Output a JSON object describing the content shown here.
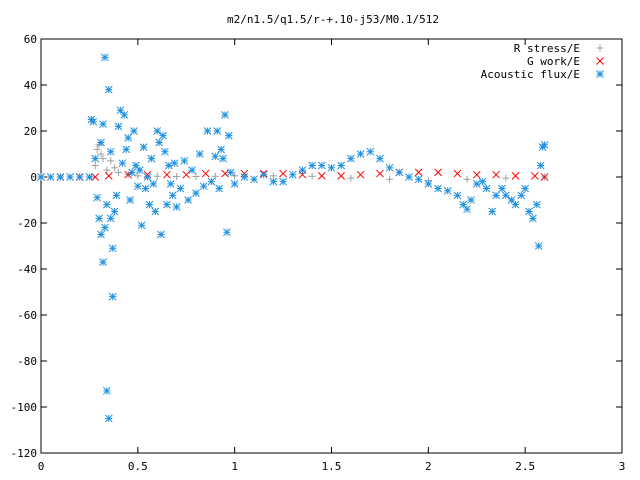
{
  "chart_data": {
    "type": "scatter",
    "title": "m2/n1.5/q1.5/r-+.10-j53/M0.1/512",
    "xlim": [
      0,
      3
    ],
    "ylim": [
      -120,
      60
    ],
    "xticks": [
      "0",
      "0.5",
      "1",
      "1.5",
      "2",
      "2.5",
      "3"
    ],
    "yticks": [
      "-120",
      "-100",
      "-80",
      "-60",
      "-40",
      "-20",
      "0",
      "20",
      "40",
      "60"
    ],
    "legend_position": "top-right",
    "series": [
      {
        "name": "R stress/E",
        "marker": "plus",
        "color": "#a0a0a0",
        "points": [
          [
            0.0,
            0
          ],
          [
            0.1,
            0
          ],
          [
            0.2,
            0
          ],
          [
            0.26,
            0
          ],
          [
            0.28,
            5
          ],
          [
            0.29,
            12
          ],
          [
            0.3,
            14
          ],
          [
            0.31,
            10
          ],
          [
            0.32,
            8
          ],
          [
            0.34,
            3
          ],
          [
            0.36,
            7
          ],
          [
            0.38,
            4
          ],
          [
            0.4,
            2
          ],
          [
            0.45,
            1
          ],
          [
            0.5,
            0.5
          ],
          [
            0.6,
            0.3
          ],
          [
            0.7,
            0.2
          ],
          [
            0.8,
            0.2
          ],
          [
            0.9,
            0.3
          ],
          [
            1.0,
            0.5
          ],
          [
            1.2,
            0.5
          ],
          [
            1.4,
            0.3
          ],
          [
            1.6,
            -0.5
          ],
          [
            1.8,
            -1
          ],
          [
            2.0,
            -1.5
          ],
          [
            2.2,
            -1
          ],
          [
            2.4,
            -0.5
          ],
          [
            2.6,
            0
          ]
        ]
      },
      {
        "name": "G work/E",
        "marker": "cross",
        "color": "#ff0000",
        "points": [
          [
            0.0,
            0
          ],
          [
            0.1,
            0
          ],
          [
            0.2,
            0
          ],
          [
            0.28,
            0
          ],
          [
            0.35,
            0.5
          ],
          [
            0.45,
            1
          ],
          [
            0.55,
            1
          ],
          [
            0.65,
            1
          ],
          [
            0.75,
            1
          ],
          [
            0.85,
            1.5
          ],
          [
            0.95,
            1.5
          ],
          [
            1.05,
            1.5
          ],
          [
            1.15,
            1.5
          ],
          [
            1.25,
            1.5
          ],
          [
            1.35,
            1
          ],
          [
            1.45,
            0.5
          ],
          [
            1.55,
            0.5
          ],
          [
            1.65,
            1
          ],
          [
            1.75,
            1.5
          ],
          [
            1.85,
            2
          ],
          [
            1.95,
            2
          ],
          [
            2.05,
            2
          ],
          [
            2.15,
            1.5
          ],
          [
            2.25,
            1
          ],
          [
            2.35,
            1
          ],
          [
            2.45,
            0.5
          ],
          [
            2.55,
            0.5
          ],
          [
            2.6,
            0
          ]
        ]
      },
      {
        "name": "Acoustic flux/E",
        "marker": "star",
        "color": "#1e90e0",
        "points": [
          [
            0.0,
            0
          ],
          [
            0.05,
            0
          ],
          [
            0.1,
            0
          ],
          [
            0.15,
            0
          ],
          [
            0.2,
            0
          ],
          [
            0.25,
            0
          ],
          [
            0.26,
            25
          ],
          [
            0.27,
            24
          ],
          [
            0.28,
            8
          ],
          [
            0.29,
            -9
          ],
          [
            0.3,
            -18
          ],
          [
            0.31,
            15
          ],
          [
            0.31,
            -25
          ],
          [
            0.32,
            -37
          ],
          [
            0.32,
            23
          ],
          [
            0.33,
            52
          ],
          [
            0.33,
            -22
          ],
          [
            0.34,
            -12
          ],
          [
            0.34,
            -93
          ],
          [
            0.35,
            38
          ],
          [
            0.35,
            -105
          ],
          [
            0.36,
            -18
          ],
          [
            0.36,
            11
          ],
          [
            0.37,
            -31
          ],
          [
            0.37,
            -52
          ],
          [
            0.38,
            -15
          ],
          [
            0.39,
            -8
          ],
          [
            0.4,
            22
          ],
          [
            0.41,
            29
          ],
          [
            0.42,
            6
          ],
          [
            0.43,
            27
          ],
          [
            0.44,
            12
          ],
          [
            0.45,
            17
          ],
          [
            0.46,
            -10
          ],
          [
            0.47,
            2
          ],
          [
            0.48,
            20
          ],
          [
            0.49,
            5
          ],
          [
            0.5,
            -4
          ],
          [
            0.51,
            3
          ],
          [
            0.52,
            -21
          ],
          [
            0.53,
            13
          ],
          [
            0.54,
            -5
          ],
          [
            0.55,
            0
          ],
          [
            0.56,
            -12
          ],
          [
            0.57,
            8
          ],
          [
            0.58,
            -3
          ],
          [
            0.59,
            -15
          ],
          [
            0.6,
            20
          ],
          [
            0.61,
            15
          ],
          [
            0.62,
            -25
          ],
          [
            0.63,
            18
          ],
          [
            0.64,
            11
          ],
          [
            0.65,
            -12
          ],
          [
            0.66,
            5
          ],
          [
            0.67,
            -3
          ],
          [
            0.68,
            -8
          ],
          [
            0.69,
            6
          ],
          [
            0.7,
            -13
          ],
          [
            0.72,
            -5
          ],
          [
            0.74,
            7
          ],
          [
            0.76,
            -10
          ],
          [
            0.78,
            3
          ],
          [
            0.8,
            -7
          ],
          [
            0.82,
            10
          ],
          [
            0.84,
            -4
          ],
          [
            0.86,
            20
          ],
          [
            0.88,
            -2
          ],
          [
            0.9,
            9
          ],
          [
            0.91,
            20
          ],
          [
            0.92,
            -5
          ],
          [
            0.93,
            12
          ],
          [
            0.94,
            8
          ],
          [
            0.95,
            27
          ],
          [
            0.96,
            -24
          ],
          [
            0.97,
            18
          ],
          [
            0.98,
            2
          ],
          [
            1.0,
            -3
          ],
          [
            1.05,
            0
          ],
          [
            1.1,
            -1
          ],
          [
            1.15,
            1
          ],
          [
            1.2,
            -2
          ],
          [
            1.25,
            -2
          ],
          [
            1.3,
            1
          ],
          [
            1.35,
            3
          ],
          [
            1.4,
            5
          ],
          [
            1.45,
            5
          ],
          [
            1.5,
            4
          ],
          [
            1.55,
            5
          ],
          [
            1.6,
            8
          ],
          [
            1.65,
            10
          ],
          [
            1.7,
            11
          ],
          [
            1.75,
            8
          ],
          [
            1.8,
            4
          ],
          [
            1.85,
            2
          ],
          [
            1.9,
            0
          ],
          [
            1.95,
            -1
          ],
          [
            2.0,
            -3
          ],
          [
            2.05,
            -5
          ],
          [
            2.1,
            -6
          ],
          [
            2.15,
            -8
          ],
          [
            2.18,
            -12
          ],
          [
            2.2,
            -14
          ],
          [
            2.22,
            -10
          ],
          [
            2.25,
            -3
          ],
          [
            2.28,
            -2
          ],
          [
            2.3,
            -5
          ],
          [
            2.33,
            -15
          ],
          [
            2.35,
            -8
          ],
          [
            2.38,
            -5
          ],
          [
            2.4,
            -8
          ],
          [
            2.43,
            -10
          ],
          [
            2.45,
            -12
          ],
          [
            2.48,
            -8
          ],
          [
            2.5,
            -5
          ],
          [
            2.52,
            -15
          ],
          [
            2.54,
            -18
          ],
          [
            2.56,
            -12
          ],
          [
            2.57,
            -30
          ],
          [
            2.58,
            5
          ],
          [
            2.59,
            13
          ],
          [
            2.6,
            14
          ]
        ]
      }
    ]
  }
}
